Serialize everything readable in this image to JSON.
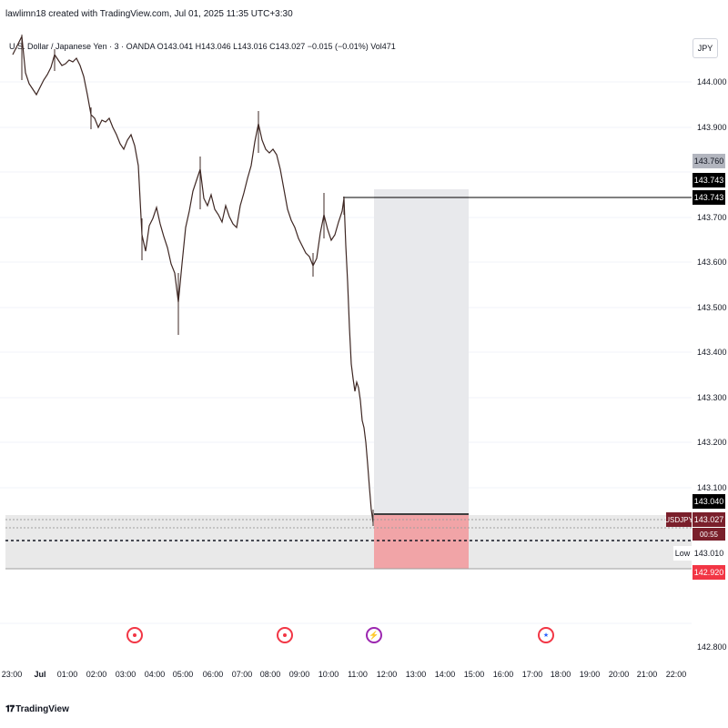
{
  "caption": "lawlimn18 created with TradingView.com, Jul 01, 2025 11:35 UTC+3:30",
  "symbol_line": "U.S. Dollar / Japanese Yen · 3 · OANDA  O143.041  H143.046  L143.016  C143.027  −0.015 (−0.01%)  Vol471",
  "currency_button": "JPY",
  "price_ticks": [
    "144.000",
    "143.900",
    "143.700",
    "143.600",
    "143.500",
    "143.400",
    "143.300",
    "143.200",
    "143.100",
    "142.800"
  ],
  "price_labels": {
    "grey": "143.760",
    "black_1": "143.743",
    "black_2": "143.743",
    "black_3": "143.040",
    "last": "143.027",
    "countdown": "00:55",
    "low": "143.010",
    "red": "142.920"
  },
  "usdjpy_tag": "USDJPY",
  "low_tag": "Low",
  "time_ticks": [
    "23:00",
    "Jul",
    "01:00",
    "02:00",
    "03:00",
    "04:00",
    "05:00",
    "06:00",
    "07:00",
    "08:00",
    "09:00",
    "10:00",
    "11:00",
    "12:00",
    "13:00",
    "14:00",
    "15:00",
    "16:00",
    "17:00",
    "18:00",
    "19:00",
    "20:00",
    "21:00",
    "22:00"
  ],
  "events": [
    "red-event-icon",
    "red-event-icon",
    "lightning-event-icon",
    "us-flag-event-icon"
  ],
  "brand": "TradingView",
  "colors": {
    "candle": "#5d4037",
    "stop_zone": "#f29ca0",
    "target_zone": "#e8e9ec",
    "grey_band": "#dcdcdc",
    "up": "#26a69a",
    "down": "#ef5350"
  }
}
